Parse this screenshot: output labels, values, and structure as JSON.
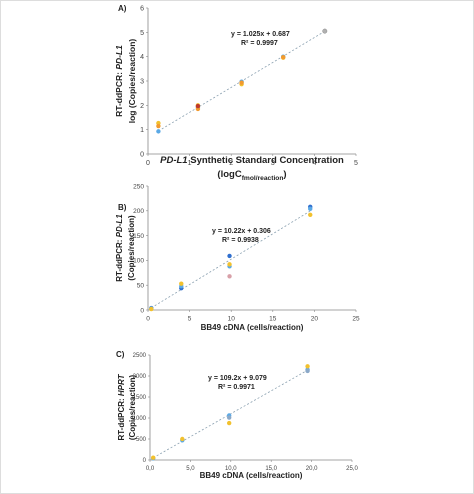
{
  "chart_data": [
    {
      "type": "scatter",
      "panel_label": "A)",
      "ylabel_lines": [
        {
          "parts": [
            {
              "text": "RT-ddPCR: ",
              "italic": false
            },
            {
              "text": "PD-L1",
              "italic": true
            }
          ]
        },
        {
          "parts": [
            {
              "text": "log (Copies/reaction)",
              "italic": false
            }
          ]
        }
      ],
      "xlabel_lines": [
        {
          "parts": [
            {
              "text": "PD-L1",
              "italic": true
            },
            {
              "text": " Synthetic Standard Concentration",
              "italic": false
            }
          ]
        },
        {
          "parts": [
            {
              "text": "(logC",
              "italic": false
            },
            {
              "text": "fmol/reaction",
              "italic": false,
              "sub": true
            },
            {
              "text": ")",
              "italic": false
            }
          ]
        }
      ],
      "xlim": [
        0,
        5
      ],
      "ylim": [
        0,
        6
      ],
      "xticks": [
        0,
        1,
        2,
        3,
        4,
        5
      ],
      "yticks": [
        0,
        1,
        2,
        3,
        4,
        5,
        6
      ],
      "equation": "y = 1.025x + 0.687",
      "r2": "R² = 0.9997",
      "trendline": {
        "slope": 1.025,
        "intercept": 0.687,
        "x_range": [
          0.25,
          4.25
        ]
      },
      "series": [
        {
          "color": "#5aa9e6",
          "points": [
            [
              0.25,
              0.93
            ],
            [
              1.2,
              1.92
            ],
            [
              2.25,
              2.97
            ],
            [
              3.25,
              4.0
            ]
          ]
        },
        {
          "color": "#f2c12e",
          "points": [
            [
              0.25,
              1.27
            ],
            [
              1.2,
              2.0
            ],
            [
              2.25,
              2.87
            ],
            [
              3.25,
              3.96
            ]
          ]
        },
        {
          "color": "#f29a2e",
          "points": [
            [
              0.25,
              1.15
            ],
            [
              1.2,
              1.85
            ],
            [
              2.25,
              2.93
            ],
            [
              3.25,
              3.98
            ]
          ]
        },
        {
          "color": "#c0392b",
          "points": [
            [
              1.2,
              1.97
            ]
          ]
        },
        {
          "color": "#b0b0b0",
          "points": [
            [
              4.25,
              5.05
            ]
          ]
        }
      ]
    },
    {
      "type": "scatter",
      "panel_label": "B)",
      "ylabel_lines": [
        {
          "parts": [
            {
              "text": "RT-ddPCR: ",
              "italic": false
            },
            {
              "text": "PD-L1",
              "italic": true
            }
          ]
        },
        {
          "parts": [
            {
              "text": "(Copies/reaction)",
              "italic": false
            }
          ]
        }
      ],
      "xlabel_lines": [
        {
          "parts": [
            {
              "text": "BB49 cDNA (cells/reaction)",
              "italic": false
            }
          ]
        }
      ],
      "xlim": [
        0,
        25
      ],
      "ylim": [
        0,
        250
      ],
      "xticks": [
        0,
        5,
        10,
        15,
        20,
        25
      ],
      "yticks": [
        0,
        50,
        100,
        150,
        200,
        250
      ],
      "equation": "y = 10.22x + 0.306",
      "r2": "R² = 0.9938",
      "trendline": {
        "slope": 10.22,
        "intercept": 0.306,
        "x_range": [
          0.4,
          19.5
        ]
      },
      "series": [
        {
          "color": "#2f6fcf",
          "points": [
            [
              0.4,
              4
            ],
            [
              4,
              44
            ],
            [
              9.8,
              109
            ],
            [
              19.5,
              208
            ]
          ]
        },
        {
          "color": "#5aa9e6",
          "points": [
            [
              0.4,
              3
            ],
            [
              4,
              48
            ],
            [
              9.8,
              88
            ],
            [
              19.5,
              204
            ]
          ]
        },
        {
          "color": "#f2c12e",
          "points": [
            [
              0.4,
              2
            ],
            [
              4,
              53
            ],
            [
              9.8,
              92
            ],
            [
              19.5,
              192
            ]
          ]
        },
        {
          "color": "#d8a0a8",
          "points": [
            [
              9.8,
              68
            ]
          ]
        }
      ]
    },
    {
      "type": "scatter",
      "panel_label": "C)",
      "ylabel_lines": [
        {
          "parts": [
            {
              "text": "RT-ddPCR: ",
              "italic": false
            },
            {
              "text": "HPRT",
              "italic": true
            }
          ]
        },
        {
          "parts": [
            {
              "text": "(Copies/reaction)",
              "italic": false
            }
          ]
        }
      ],
      "xlabel_lines": [
        {
          "parts": [
            {
              "text": "BB49 cDNA (cells/reaction)",
              "italic": false
            }
          ]
        }
      ],
      "xlim": [
        0,
        25
      ],
      "ylim": [
        0,
        2500
      ],
      "xticks": [
        0,
        5,
        10,
        15,
        20,
        25
      ],
      "xtick_labels": [
        "0,0",
        "5,0",
        "10,0",
        "15,0",
        "20,0",
        "25,0"
      ],
      "yticks": [
        0,
        500,
        1000,
        1500,
        2000,
        2500
      ],
      "equation": "y = 109.2x + 9.079",
      "r2": "R² = 0.9971",
      "trendline": {
        "slope": 109.2,
        "intercept": 9.079,
        "x_range": [
          0.4,
          19.5
        ]
      },
      "series": [
        {
          "color": "#5aa9e6",
          "points": [
            [
              0.4,
              40
            ],
            [
              4,
              470
            ],
            [
              9.8,
              1060
            ],
            [
              19.5,
              2150
            ]
          ]
        },
        {
          "color": "#f2c12e",
          "points": [
            [
              0.4,
              55
            ],
            [
              4,
              500
            ],
            [
              9.8,
              880
            ],
            [
              19.5,
              2230
            ]
          ]
        },
        {
          "color": "#8aa8c8",
          "points": [
            [
              9.8,
              1010
            ],
            [
              19.5,
              2120
            ]
          ]
        }
      ]
    }
  ]
}
